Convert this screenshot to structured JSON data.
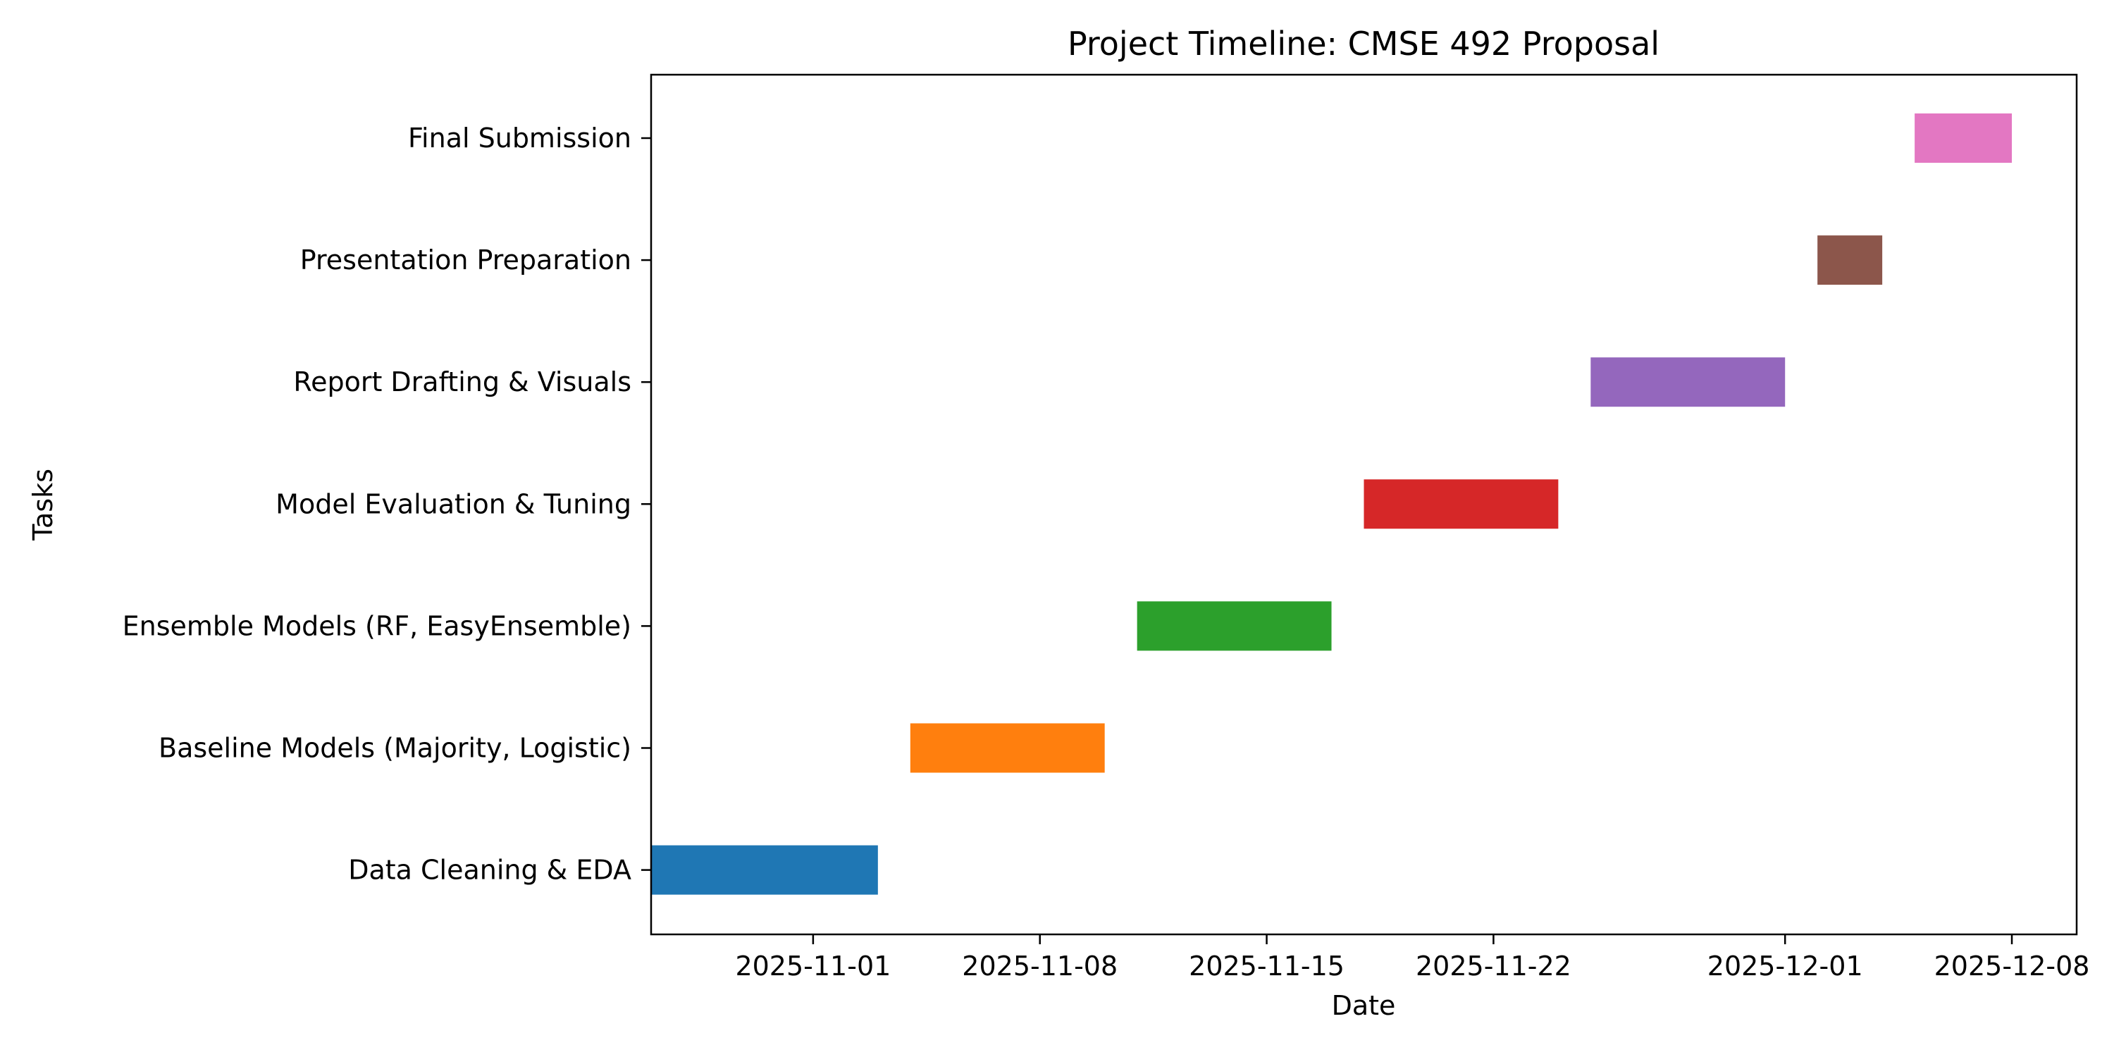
{
  "chart_data": {
    "type": "bar",
    "orientation": "horizontal",
    "title": "Project Timeline: CMSE 492 Proposal",
    "xlabel": "Date",
    "ylabel": "Tasks",
    "xlim": [
      "2025-10-27",
      "2025-12-10"
    ],
    "x_ticks": [
      "2025-11-01",
      "2025-11-08",
      "2025-11-15",
      "2025-11-22",
      "2025-12-01",
      "2025-12-08"
    ],
    "grid": false,
    "legend": "none",
    "tasks": [
      {
        "name": "Data Cleaning & EDA",
        "start": "2025-10-27",
        "end": "2025-11-03",
        "color": "#1f77b4"
      },
      {
        "name": "Baseline Models (Majority, Logistic)",
        "start": "2025-11-04",
        "end": "2025-11-10",
        "color": "#ff7f0e"
      },
      {
        "name": "Ensemble Models (RF, EasyEnsemble)",
        "start": "2025-11-11",
        "end": "2025-11-17",
        "color": "#2ca02c"
      },
      {
        "name": "Model Evaluation & Tuning",
        "start": "2025-11-18",
        "end": "2025-11-24",
        "color": "#d62728"
      },
      {
        "name": "Report Drafting & Visuals",
        "start": "2025-11-25",
        "end": "2025-12-01",
        "color": "#9467bd"
      },
      {
        "name": "Presentation Preparation",
        "start": "2025-12-02",
        "end": "2025-12-04",
        "color": "#8c564b"
      },
      {
        "name": "Final Submission",
        "start": "2025-12-05",
        "end": "2025-12-08",
        "color": "#e377c2"
      }
    ]
  }
}
